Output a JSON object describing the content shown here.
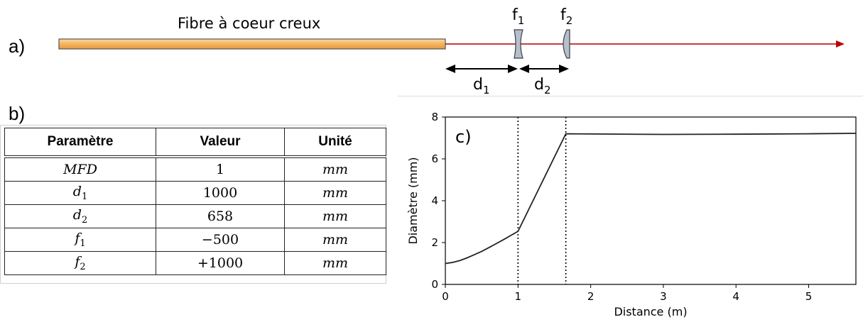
{
  "panels": {
    "a": "a)",
    "b": "b)",
    "c": "c)"
  },
  "schematic": {
    "fiber_label": "Fibre à coeur creux",
    "lens1": {
      "main": "f",
      "sub": "1"
    },
    "lens2": {
      "main": "f",
      "sub": "2"
    },
    "dist1": {
      "main": "d",
      "sub": "1"
    },
    "dist2": {
      "main": "d",
      "sub": "2"
    },
    "colors": {
      "fiber": "#f5b35f",
      "beam": "#b00000",
      "lens": "#b7bfca"
    }
  },
  "table": {
    "headers": [
      "Paramètre",
      "Valeur",
      "Unité"
    ],
    "rows": [
      {
        "param": "MFD",
        "sub": "",
        "value": "1",
        "unit": "mm"
      },
      {
        "param": "d",
        "sub": "1",
        "value": "1000",
        "unit": "mm"
      },
      {
        "param": "d",
        "sub": "2",
        "value": "658",
        "unit": "mm"
      },
      {
        "param": "f",
        "sub": "1",
        "value": "−500",
        "unit": "mm"
      },
      {
        "param": "f",
        "sub": "2",
        "value": "+1000",
        "unit": "mm"
      }
    ]
  },
  "chart_data": {
    "type": "line",
    "xlabel": "Distance (m)",
    "ylabel": "Diamètre (mm)",
    "xlim": [
      0,
      5.65
    ],
    "ylim": [
      0,
      8
    ],
    "xticks": [
      0,
      1,
      2,
      3,
      4,
      5
    ],
    "yticks": [
      0,
      2,
      4,
      6,
      8
    ],
    "vlines": [
      1.0,
      1.658
    ],
    "series": [
      {
        "x": [
          0,
          0.1,
          0.2,
          0.3,
          0.4,
          0.5,
          0.6,
          0.7,
          0.8,
          0.9,
          1.0,
          1.658,
          2.0,
          3.0,
          4.0,
          5.0,
          5.65
        ],
        "y": [
          1.0,
          1.05,
          1.14,
          1.27,
          1.42,
          1.58,
          1.76,
          1.95,
          2.14,
          2.34,
          2.54,
          7.2,
          7.19,
          7.17,
          7.18,
          7.2,
          7.22
        ]
      }
    ]
  }
}
